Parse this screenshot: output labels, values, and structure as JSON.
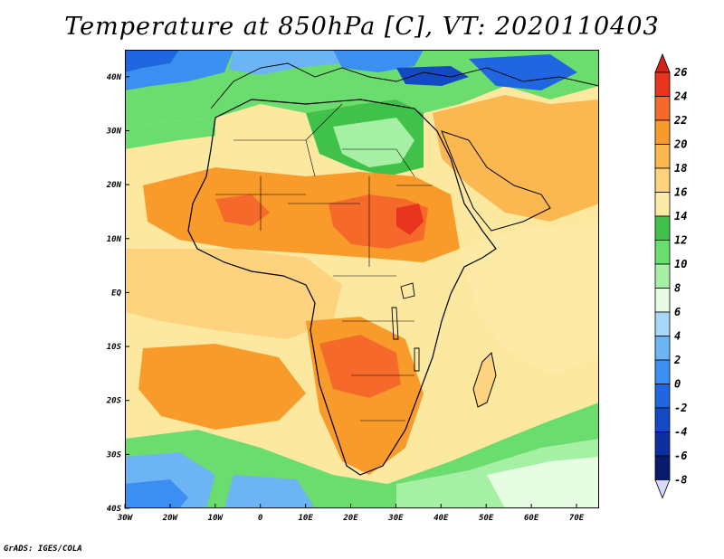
{
  "title": "Temperature at 850hPa [C], VT: 2020110403",
  "credit": "GrADS: IGES/COLA",
  "map": {
    "lon_range": [
      -30,
      75
    ],
    "lat_range": [
      -40,
      45
    ],
    "lat_ticks": [
      {
        "value": 40,
        "label": "40N"
      },
      {
        "value": 30,
        "label": "30N"
      },
      {
        "value": 20,
        "label": "20N"
      },
      {
        "value": 10,
        "label": "10N"
      },
      {
        "value": 0,
        "label": "EQ"
      },
      {
        "value": -10,
        "label": "10S"
      },
      {
        "value": -20,
        "label": "20S"
      },
      {
        "value": -30,
        "label": "30S"
      },
      {
        "value": -40,
        "label": "40S"
      }
    ],
    "lon_ticks": [
      {
        "value": -30,
        "label": "30W"
      },
      {
        "value": -20,
        "label": "20W"
      },
      {
        "value": -10,
        "label": "10W"
      },
      {
        "value": 0,
        "label": "0"
      },
      {
        "value": 10,
        "label": "10E"
      },
      {
        "value": 20,
        "label": "20E"
      },
      {
        "value": 30,
        "label": "30E"
      },
      {
        "value": 40,
        "label": "40E"
      },
      {
        "value": 50,
        "label": "50E"
      },
      {
        "value": 60,
        "label": "60E"
      },
      {
        "value": 70,
        "label": "70E"
      }
    ],
    "ocean_color": "#fde8a0",
    "boundary_color": "#000000"
  },
  "colorbar": {
    "levels": [
      {
        "label": "26",
        "color": "#e8341f"
      },
      {
        "label": "24",
        "color": "#f56a2a"
      },
      {
        "label": "22",
        "color": "#f99b2b"
      },
      {
        "label": "20",
        "color": "#fbb851"
      },
      {
        "label": "18",
        "color": "#fdd37f"
      },
      {
        "label": "16",
        "color": "#fdeaa7"
      },
      {
        "label": "14",
        "color": "#3fc14a"
      },
      {
        "label": "12",
        "color": "#6bdc6e"
      },
      {
        "label": "10",
        "color": "#a6f0a6"
      },
      {
        "label": "8",
        "color": "#e6fde3"
      },
      {
        "label": "6",
        "color": "#a8d8f8"
      },
      {
        "label": "4",
        "color": "#6db4f4"
      },
      {
        "label": "2",
        "color": "#3b8ff0"
      },
      {
        "label": "0",
        "color": "#1f66e0"
      },
      {
        "label": "-2",
        "color": "#1449c4"
      },
      {
        "label": "-4",
        "color": "#0d2f9e"
      },
      {
        "label": "-6",
        "color": "#081c6e"
      }
    ],
    "bottom_label": "-8",
    "top_arrow_color": "#d2231a",
    "bottom_arrow_color": "#d8d8f8"
  }
}
